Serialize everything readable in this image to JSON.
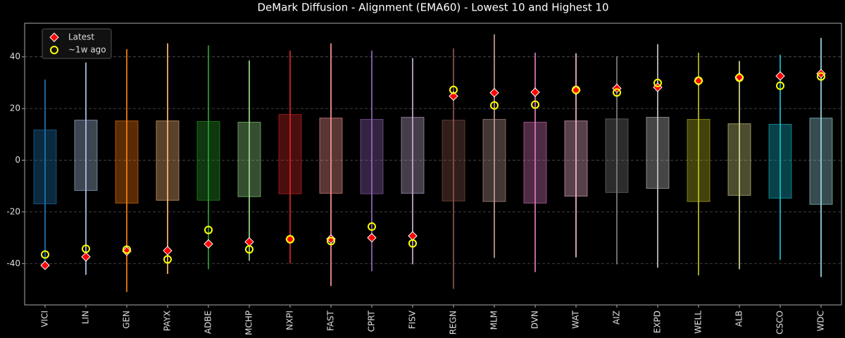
{
  "chart_data": {
    "type": "range-box",
    "title": "DeMark Diffusion - Alignment (EMA60) - Lowest 10 and Highest 10",
    "categories": [
      "VICI",
      "LIN",
      "GEN",
      "PAYX",
      "ADBE",
      "MCHP",
      "NXPI",
      "FAST",
      "CPRT",
      "FISV",
      "REGN",
      "MLM",
      "DVN",
      "WAT",
      "AIZ",
      "EXPD",
      "WELL",
      "ALB",
      "CSCO",
      "WDC"
    ],
    "colors": [
      "#1f77b4",
      "#aec7e8",
      "#ff7f0e",
      "#ffbb78",
      "#2ca02c",
      "#98df8a",
      "#d62728",
      "#ff9896",
      "#9467bd",
      "#c5b0d5",
      "#8c564b",
      "#c49c94",
      "#e377c2",
      "#f7b6d2",
      "#7f7f7f",
      "#c7c7c7",
      "#bcbd22",
      "#dbdb8d",
      "#17becf",
      "#9edae5"
    ],
    "range_low": [
      -40,
      -44.4,
      -51,
      -44,
      -42.2,
      -38.9,
      -40,
      -48.7,
      -43,
      -40.3,
      -49.8,
      -37.8,
      -43.3,
      -37.6,
      -40.3,
      -41.6,
      -44.6,
      -42.2,
      -38.6,
      -45.2
    ],
    "range_high": [
      31.2,
      37.8,
      43,
      45.2,
      44.4,
      38.6,
      42.4,
      45.2,
      42.4,
      39.5,
      43.3,
      48.7,
      41.6,
      41.4,
      40.3,
      44.9,
      41.6,
      38.4,
      40.8,
      47.3
    ],
    "box_low": [
      -16.9,
      -11.7,
      -16.6,
      -15.5,
      -15.5,
      -14.1,
      -13,
      -12.8,
      -13,
      -12.8,
      -15.8,
      -16,
      -16.6,
      -13.9,
      -12.5,
      -10.9,
      -16,
      -13.6,
      -14.7,
      -17.1
    ],
    "box_high": [
      11.7,
      15.5,
      15.2,
      15.2,
      15,
      14.7,
      17.7,
      16.3,
      15.8,
      16.6,
      15.5,
      15.8,
      14.7,
      15.2,
      16,
      16.6,
      15.8,
      14.1,
      13.9,
      16.3
    ],
    "series": [
      {
        "name": "Latest",
        "color": "#ff0000",
        "marker": "diamond",
        "values": [
          -40.7,
          -37.4,
          -35.2,
          -35,
          -32.4,
          -31.6,
          -30.6,
          -30.5,
          -30,
          -29.3,
          24.8,
          26.1,
          26.3,
          27,
          27.8,
          28.2,
          30.6,
          32.2,
          32.6,
          33.5
        ]
      },
      {
        "name": "~1w ago",
        "color": "#ffff00",
        "marker": "circle",
        "values": [
          -36.5,
          -34.3,
          -34.6,
          -38.4,
          -27,
          -34.5,
          -30.6,
          -31.3,
          -25.7,
          -32.2,
          27.2,
          21.2,
          21.5,
          27.2,
          26.2,
          29.9,
          30.8,
          31.9,
          28.8,
          32.4
        ]
      }
    ],
    "ylim": [
      -56,
      53
    ],
    "yticks": [
      -40,
      -20,
      0,
      20,
      40
    ],
    "grid": true,
    "legend": "upper left"
  }
}
